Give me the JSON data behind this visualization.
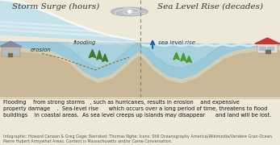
{
  "title_left": "Storm Surge (hours)",
  "title_right": "Sea Level Rise (decades)",
  "label_flooding": "flooding",
  "label_erosion": "erosion",
  "label_slr": "sea level rise",
  "sky_color": "#e8f4fa",
  "water_deep": "#7ab8d4",
  "water_mid": "#9ecde0",
  "water_light": "#c2e2ef",
  "wave_color": "#b8dff0",
  "wave_white": "#dff0f8",
  "sand_dark": "#c8b896",
  "sand_light": "#ddd0b0",
  "sand_top": "#cfc0a0",
  "divider_color": "#8a8a6a",
  "arrow_color": "#3a7abf",
  "footer_bg": "#ede8d8",
  "title_color": "#333333",
  "title_fontsize": 7.5,
  "body_fontsize": 4.8,
  "credit_fontsize": 3.5,
  "label_color": "#2a2a2a",
  "label_fontsize": 5.0,
  "slr_arrow_color": "#2060b0"
}
